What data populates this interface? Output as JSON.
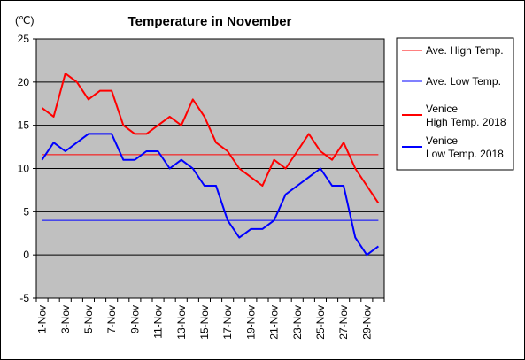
{
  "chart_data": {
    "type": "line",
    "title": "Temperature in November",
    "unit_label": "(℃)",
    "x": [
      "1-Nov",
      "2-Nov",
      "3-Nov",
      "4-Nov",
      "5-Nov",
      "6-Nov",
      "7-Nov",
      "8-Nov",
      "9-Nov",
      "10-Nov",
      "11-Nov",
      "12-Nov",
      "13-Nov",
      "14-Nov",
      "15-Nov",
      "16-Nov",
      "17-Nov",
      "18-Nov",
      "19-Nov",
      "20-Nov",
      "21-Nov",
      "22-Nov",
      "23-Nov",
      "24-Nov",
      "25-Nov",
      "26-Nov",
      "27-Nov",
      "28-Nov",
      "29-Nov",
      "30-Nov"
    ],
    "x_tick_labels": [
      "1-Nov",
      "3-Nov",
      "5-Nov",
      "7-Nov",
      "9-Nov",
      "11-Nov",
      "13-Nov",
      "15-Nov",
      "17-Nov",
      "19-Nov",
      "21-Nov",
      "23-Nov",
      "25-Nov",
      "27-Nov",
      "29-Nov"
    ],
    "ylim": [
      -5,
      25
    ],
    "y_ticks": [
      -5,
      0,
      5,
      10,
      15,
      20,
      25
    ],
    "grid": true,
    "plot_background": "#c0c0c0",
    "legend_position": "right",
    "series": [
      {
        "name": "Ave. High Temp.",
        "color": "#ff0000",
        "width": 1,
        "values": [
          11.6,
          11.6,
          11.6,
          11.6,
          11.6,
          11.6,
          11.6,
          11.6,
          11.6,
          11.6,
          11.6,
          11.6,
          11.6,
          11.6,
          11.6,
          11.6,
          11.6,
          11.6,
          11.6,
          11.6,
          11.6,
          11.6,
          11.6,
          11.6,
          11.6,
          11.6,
          11.6,
          11.6,
          11.6,
          11.6
        ]
      },
      {
        "name": "Ave. Low Temp.",
        "color": "#0000ff",
        "width": 1,
        "values": [
          4,
          4,
          4,
          4,
          4,
          4,
          4,
          4,
          4,
          4,
          4,
          4,
          4,
          4,
          4,
          4,
          4,
          4,
          4,
          4,
          4,
          4,
          4,
          4,
          4,
          4,
          4,
          4,
          4,
          4
        ]
      },
      {
        "name": "Venice High Temp. 2018",
        "legend_lines": [
          "Venice",
          "High Temp. 2018"
        ],
        "color": "#ff0000",
        "width": 2,
        "values": [
          17,
          16,
          21,
          20,
          18,
          19,
          19,
          15,
          14,
          14,
          15,
          16,
          15,
          18,
          16,
          13,
          12,
          10,
          9,
          8,
          11,
          10,
          12,
          14,
          12,
          11,
          13,
          10,
          8,
          6
        ]
      },
      {
        "name": "Venice Low Temp. 2018",
        "legend_lines": [
          "Venice",
          "Low Temp. 2018"
        ],
        "color": "#0000ff",
        "width": 2,
        "values": [
          11,
          13,
          12,
          13,
          14,
          14,
          14,
          11,
          11,
          12,
          12,
          10,
          11,
          10,
          8,
          8,
          4,
          2,
          3,
          3,
          4,
          7,
          8,
          9,
          10,
          8,
          8,
          2,
          0,
          1
        ]
      }
    ]
  }
}
